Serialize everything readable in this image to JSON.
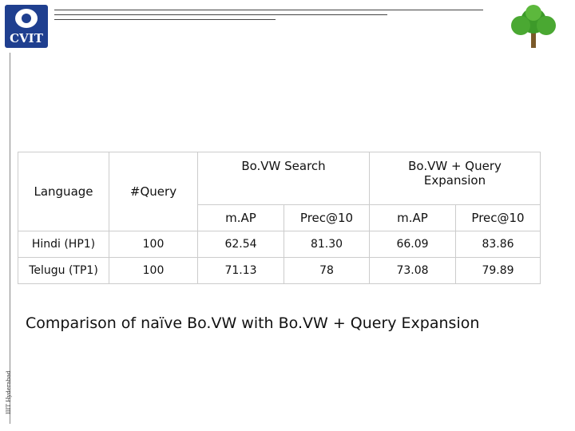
{
  "header": {
    "logo": "CVIT"
  },
  "footer": {
    "side_text": "IIIT Hyderabad"
  },
  "table": {
    "group_headers": [
      "Language",
      "#Query",
      "Bo.VW Search",
      "Bo.VW + Query Expansion"
    ],
    "sub_headers": [
      "m.AP",
      "Prec@10",
      "m.AP",
      "Prec@10"
    ],
    "rows": [
      [
        "Hindi (HP1)",
        "100",
        "62.54",
        "81.30",
        "66.09",
        "83.86"
      ],
      [
        "Telugu (TP1)",
        "100",
        "71.13",
        "78",
        "73.08",
        "79.89"
      ]
    ]
  },
  "caption": "Comparison of naïve Bo.VW with Bo.VW + Query Expansion"
}
